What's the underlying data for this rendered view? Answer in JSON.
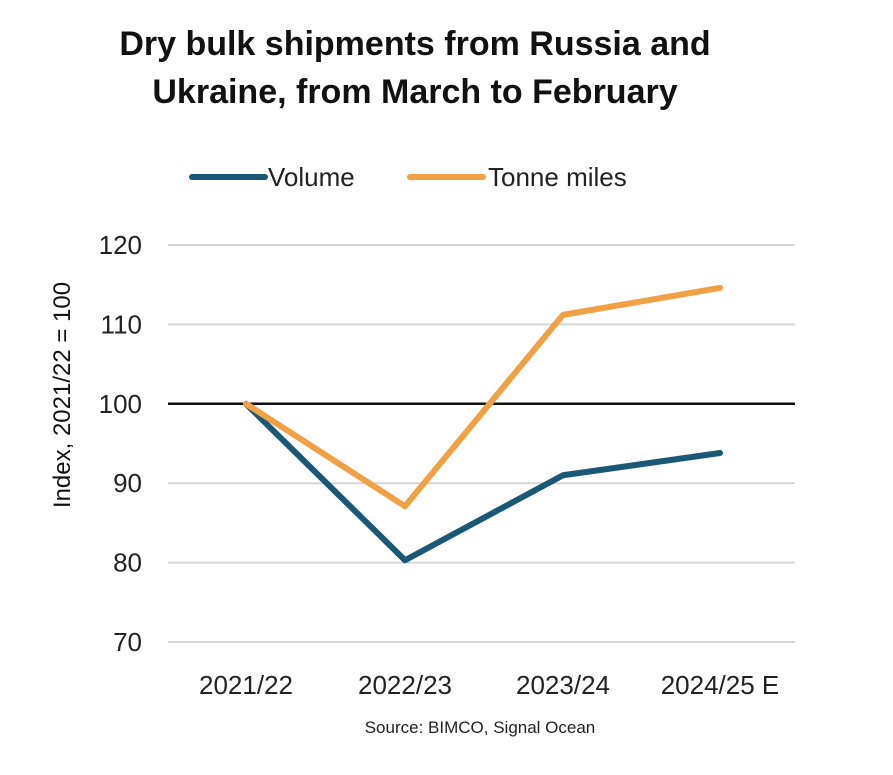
{
  "chart_data": {
    "type": "line",
    "title": [
      "Dry bulk shipments from Russia and",
      "Ukraine, from March to February"
    ],
    "ylabel": "Index, 2021/22 = 100",
    "xlabel": "",
    "categories": [
      "2021/22",
      "2022/23",
      "2023/24",
      "2024/25 E"
    ],
    "yticks": [
      "120",
      "110",
      "100",
      "90",
      "80",
      "70"
    ],
    "ylim": [
      70,
      120
    ],
    "ytick_values": [
      120,
      110,
      100,
      90,
      80,
      70
    ],
    "baseline": 100,
    "grid": true,
    "legend_position": "top",
    "series": [
      {
        "name": "Volume",
        "values": [
          100,
          80.3,
          91,
          93.8
        ],
        "color": "#1b5876"
      },
      {
        "name": "Tonne miles",
        "values": [
          100,
          87.1,
          111.2,
          114.6
        ],
        "color": "#f0a045"
      }
    ],
    "source": "Source: BIMCO, Signal Ocean"
  }
}
